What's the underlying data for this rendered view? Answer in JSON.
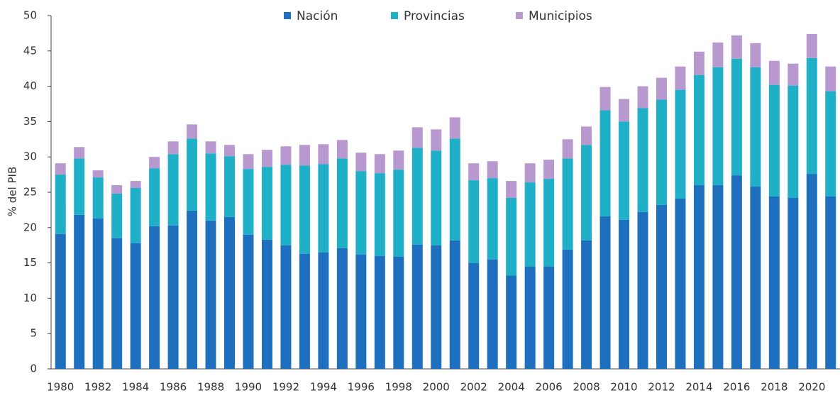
{
  "chart_data": {
    "type": "stacked_bar",
    "y_label": "% del PIB",
    "categories": [
      "1980",
      null,
      "1982",
      null,
      "1984",
      null,
      "1986",
      null,
      "1988",
      null,
      "1990",
      null,
      "1992",
      null,
      "1994",
      null,
      "1996",
      null,
      "1998",
      null,
      "2000",
      null,
      "2002",
      null,
      "2004",
      null,
      "2006",
      null,
      "2008",
      null,
      "2010",
      null,
      "2012",
      null,
      "2014",
      null,
      "2016",
      null,
      "2018",
      null,
      "2020",
      null
    ],
    "series": [
      {
        "name": "Nación",
        "color": "#1f6fbf",
        "values": [
          19.1,
          21.8,
          21.3,
          18.5,
          17.8,
          20.2,
          20.3,
          22.4,
          21.0,
          21.5,
          19.0,
          18.3,
          17.5,
          16.3,
          16.5,
          17.1,
          16.2,
          16.0,
          15.9,
          17.6,
          17.5,
          18.2,
          15.0,
          15.5,
          13.2,
          14.5,
          14.5,
          16.9,
          18.2,
          21.6,
          21.1,
          22.2,
          23.2,
          24.1,
          26.0,
          26.0,
          27.4,
          25.8,
          24.4,
          24.2,
          27.6,
          24.4
        ]
      },
      {
        "name": "Provincias",
        "color": "#1fb0c8",
        "values": [
          8.4,
          8.0,
          5.8,
          6.3,
          7.8,
          8.2,
          10.1,
          10.2,
          9.5,
          8.6,
          9.3,
          10.3,
          11.4,
          12.5,
          12.5,
          12.7,
          11.8,
          11.7,
          12.3,
          13.7,
          13.4,
          14.4,
          11.7,
          11.5,
          11.0,
          11.9,
          12.4,
          12.9,
          13.5,
          15.0,
          13.9,
          14.7,
          14.9,
          15.4,
          15.6,
          16.7,
          16.5,
          16.9,
          15.8,
          15.9,
          16.4,
          14.9
        ]
      },
      {
        "name": "Municipios",
        "color": "#b799d0",
        "values": [
          1.6,
          1.6,
          1.0,
          1.2,
          1.0,
          1.6,
          1.8,
          2.0,
          1.7,
          1.6,
          2.1,
          2.4,
          2.6,
          2.9,
          2.8,
          2.6,
          2.6,
          2.7,
          2.7,
          2.9,
          3.0,
          3.0,
          2.4,
          2.4,
          2.4,
          2.7,
          2.7,
          2.7,
          2.6,
          3.3,
          3.2,
          3.1,
          3.1,
          3.3,
          3.3,
          3.5,
          3.3,
          3.4,
          3.4,
          3.1,
          3.4,
          3.5
        ]
      }
    ],
    "ylim": [
      0,
      50
    ],
    "yticks": [
      0,
      5,
      10,
      15,
      20,
      25,
      30,
      35,
      40,
      45,
      50
    ],
    "legend": "top",
    "grid": false
  }
}
